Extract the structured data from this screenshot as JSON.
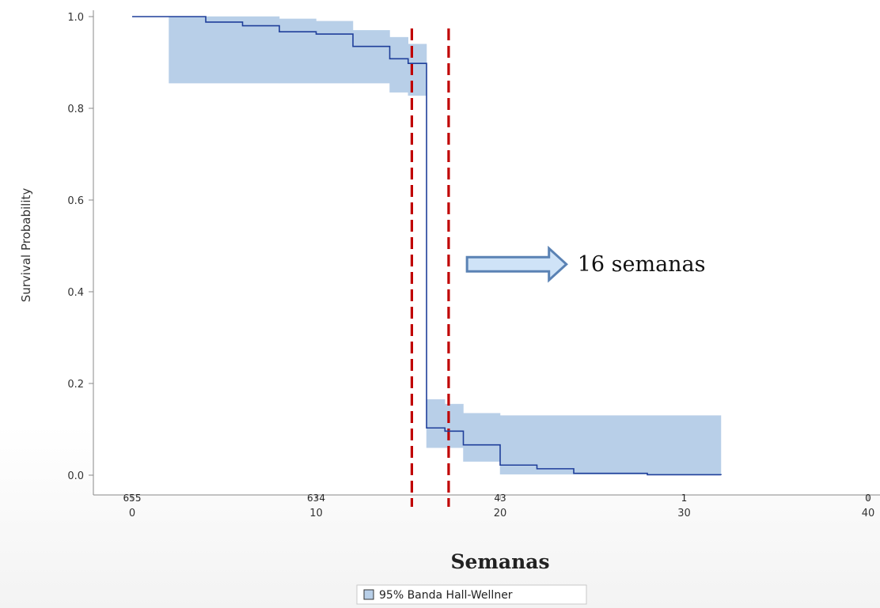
{
  "chart_data": {
    "type": "line",
    "title": "",
    "xlabel": "Semanas",
    "ylabel": "Survival Probability",
    "xlim": [
      -2,
      40
    ],
    "ylim": [
      -0.05,
      1.0
    ],
    "x_ticks": [
      0,
      10,
      20,
      30,
      40
    ],
    "y_ticks": [
      0.0,
      0.2,
      0.4,
      0.6,
      0.8,
      1.0
    ],
    "x_tick_labels": [
      "0",
      "10",
      "20",
      "30",
      "40"
    ],
    "y_tick_labels": [
      "0.0",
      "0.2",
      "0.4",
      "0.6",
      "0.8",
      "1.0"
    ],
    "grid": false,
    "legend_position": "bottom-center",
    "series": [
      {
        "steps": [
          [
            0,
            1.0
          ],
          [
            4,
            0.988
          ],
          [
            6,
            0.98
          ],
          [
            8,
            0.967
          ],
          [
            10,
            0.962
          ],
          [
            12,
            0.935
          ],
          [
            14,
            0.908
          ],
          [
            15,
            0.898
          ],
          [
            16,
            0.103
          ],
          [
            17,
            0.096
          ],
          [
            18,
            0.066
          ],
          [
            20,
            0.022
          ],
          [
            22,
            0.014
          ],
          [
            24,
            0.004
          ],
          [
            28,
            0.001
          ],
          [
            32,
            0.0
          ]
        ],
        "color": "#1f3f9a"
      }
    ],
    "confidence_band": {
      "name": "95% Banda Hall-Wellner",
      "color": "#b8cfe8",
      "segments": [
        {
          "x0": 2,
          "x1": 8,
          "lo": 0.855,
          "hi": 1.0
        },
        {
          "x0": 8,
          "x1": 10,
          "lo": 0.855,
          "hi": 0.995
        },
        {
          "x0": 10,
          "x1": 12,
          "lo": 0.855,
          "hi": 0.99
        },
        {
          "x0": 12,
          "x1": 14,
          "lo": 0.855,
          "hi": 0.97
        },
        {
          "x0": 14,
          "x1": 15,
          "lo": 0.835,
          "hi": 0.955
        },
        {
          "x0": 15,
          "x1": 16,
          "lo": 0.828,
          "hi": 0.94
        },
        {
          "x0": 16,
          "x1": 17,
          "lo": 0.06,
          "hi": 0.165
        },
        {
          "x0": 17,
          "x1": 18,
          "lo": 0.06,
          "hi": 0.155
        },
        {
          "x0": 18,
          "x1": 20,
          "lo": 0.03,
          "hi": 0.135
        },
        {
          "x0": 20,
          "x1": 32,
          "lo": 0.002,
          "hi": 0.13
        }
      ]
    },
    "reference_lines": [
      {
        "x": 15.2,
        "color": "#c00000",
        "style": "dashed"
      },
      {
        "x": 17.2,
        "color": "#c00000",
        "style": "dashed"
      }
    ],
    "at_risk": [
      {
        "x": 0,
        "label": "655"
      },
      {
        "x": 10,
        "label": "634"
      },
      {
        "x": 20,
        "label": "43"
      },
      {
        "x": 30,
        "label": "1"
      },
      {
        "x": 40,
        "label": "0"
      }
    ],
    "annotation": {
      "text": "16 semanas",
      "arrow_color": "#5a82b4",
      "arrow_fill": "#cfe3f7",
      "arrow_from_x": 18.2,
      "arrow_to_x": 23.6,
      "y": 0.46
    }
  }
}
